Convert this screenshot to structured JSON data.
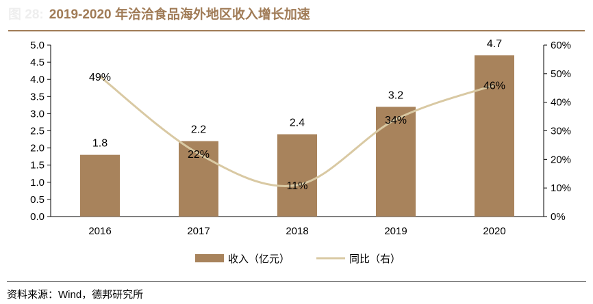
{
  "title": {
    "figure_label": "图 28:",
    "text": "2019-2020 年洽洽食品海外地区收入增长加速"
  },
  "source": "资料来源：Wind，德邦研究所",
  "chart_data": {
    "type": "bar+line",
    "categories": [
      "2016",
      "2017",
      "2018",
      "2019",
      "2020"
    ],
    "series": [
      {
        "name": "收入（亿元）",
        "type": "bar",
        "axis": "left",
        "values": [
          1.8,
          2.2,
          2.4,
          3.2,
          4.7
        ],
        "labels": [
          "1.8",
          "2.2",
          "2.4",
          "3.2",
          "4.7"
        ],
        "color": "#a8835c"
      },
      {
        "name": "同比（右）",
        "type": "line",
        "axis": "right",
        "values": [
          49,
          22,
          11,
          34,
          46
        ],
        "labels": [
          "49%",
          "22%",
          "11%",
          "34%",
          "46%"
        ],
        "color": "#d9c9a3"
      }
    ],
    "ylim": [
      0,
      5
    ],
    "yticks": [
      "0.0",
      "0.5",
      "1.0",
      "1.5",
      "2.0",
      "2.5",
      "3.0",
      "3.5",
      "4.0",
      "4.5",
      "5.0"
    ],
    "y2lim": [
      0,
      60
    ],
    "y2ticks": [
      "0%",
      "10%",
      "20%",
      "30%",
      "40%",
      "50%",
      "60%"
    ],
    "grid": false,
    "legend": "bottom"
  }
}
